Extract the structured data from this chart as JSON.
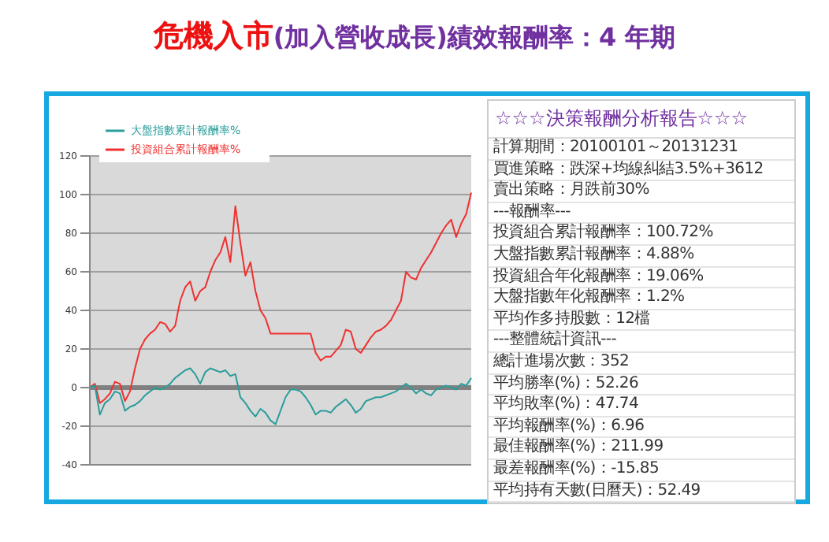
{
  "chart_data": [
    {
      "type": "line",
      "title": "危機入市(加入營收成長)績效報酬率：4 年期",
      "categories": [
        null,
        null,
        null,
        null,
        null,
        null,
        null,
        null,
        null,
        null,
        null,
        null,
        null,
        null,
        null,
        null,
        null,
        null,
        null,
        null,
        null,
        null,
        null,
        null,
        null,
        null,
        null,
        null,
        null,
        null,
        null,
        null,
        null,
        null,
        null,
        null,
        null,
        null,
        null,
        null,
        null,
        null,
        null,
        null,
        null,
        null,
        null,
        null,
        null,
        null,
        null,
        null,
        null,
        null,
        null,
        null,
        null,
        null,
        null,
        null,
        null,
        null,
        null,
        null,
        null,
        null,
        null,
        null,
        null,
        null,
        null,
        null,
        null,
        null,
        null,
        null,
        null
      ],
      "series": [
        {
          "name": "投資組合累計報酬率%",
          "color": "#f03030",
          "values": [
            0,
            2,
            -8,
            -6,
            -3,
            3,
            2,
            -7,
            -2,
            10,
            20,
            25,
            28,
            30,
            34,
            33,
            29,
            32,
            45,
            52,
            55,
            45,
            50,
            52,
            60,
            66,
            70,
            78,
            65,
            94,
            75,
            58,
            65,
            50,
            40,
            36,
            28,
            28,
            28,
            28,
            28,
            28,
            28,
            28,
            28,
            18,
            14,
            16,
            16,
            19,
            22,
            30,
            29,
            20,
            18,
            22,
            26,
            29,
            30,
            32,
            35,
            40,
            45,
            60,
            57,
            56,
            62,
            66,
            70,
            75,
            80,
            84,
            87,
            78,
            85,
            90,
            101
          ]
        },
        {
          "name": "大盤指數累計報酬率%",
          "color": "#2a9d9a",
          "values": [
            0,
            1,
            -14,
            -8,
            -6,
            -2,
            -3,
            -12,
            -10,
            -9,
            -7,
            -4,
            -2,
            0,
            -1,
            0,
            2,
            5,
            7,
            9,
            10,
            7,
            2,
            8,
            10,
            9,
            8,
            9,
            6,
            7,
            -5,
            -8,
            -12,
            -15,
            -11,
            -13,
            -17,
            -19,
            -12,
            -5,
            -1,
            -1,
            -2,
            -5,
            -9,
            -14,
            -12,
            -12,
            -13,
            -10,
            -8,
            -6,
            -9,
            -13,
            -11,
            -7,
            -6,
            -5,
            -5,
            -4,
            -3,
            -2,
            0,
            2,
            0,
            -3,
            -1,
            -3,
            -4,
            -1,
            0,
            1,
            0,
            -1,
            2,
            1,
            5
          ]
        }
      ],
      "ylim": [
        -40,
        120
      ],
      "yticks": [
        -40,
        -20,
        0,
        20,
        40,
        60,
        80,
        100,
        120
      ],
      "grid": "y",
      "legend": "top left",
      "ref_lines": [
        {
          "axis": "y",
          "value": 0,
          "color": "#808080"
        }
      ]
    },
    {
      "type": "other",
      "title": "☆☆☆決策報酬分析報告☆☆☆",
      "annotations": [
        "計算期間：20100101～20131231",
        "買進策略：跌深+均線糾結3.5%+3612",
        "賣出策略：月跌前30%",
        "---報酬率---",
        "投資組合累計報酬率：100.72%",
        "大盤指數累計報酬率：4.88%",
        "投資組合年化報酬率：19.06%",
        "大盤指數年化報酬率：1.2%",
        "平均作多持股數：12檔",
        "---整體統計資訊---",
        "總計進場次數：352",
        "平均勝率(%)：52.26",
        "平均敗率(%)：47.74",
        "平均報酬率(%)：6.96",
        "最佳報酬率(%)：211.99",
        "最差報酬率(%)：-15.85",
        "平均持有天數(日曆天)：52.49"
      ]
    }
  ]
}
